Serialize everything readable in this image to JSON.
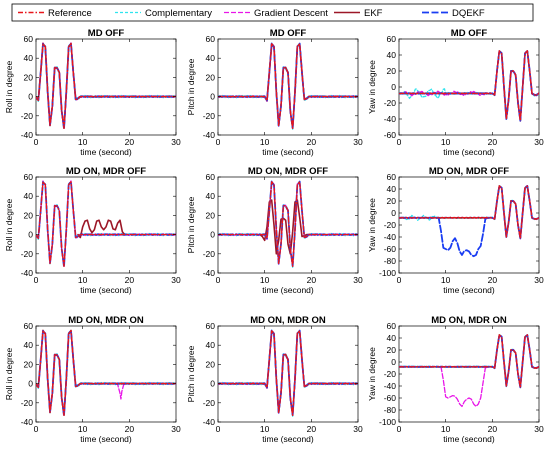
{
  "legend": [
    {
      "name": "Reference",
      "color": "#e8161b",
      "dash": "5,2,1.5,2",
      "width": 1.4
    },
    {
      "name": "Complementary",
      "color": "#2fe4ee",
      "dash": "3,2",
      "width": 1.3
    },
    {
      "name": "Gradient Descent",
      "color": "#e815e8",
      "dash": "5,2",
      "width": 1.3
    },
    {
      "name": "EKF",
      "color": "#9c1727",
      "dash": "",
      "width": 1.6
    },
    {
      "name": "DQEKF",
      "color": "#1a3df2",
      "dash": "7,2.5",
      "width": 1.8
    }
  ],
  "chart_data": [
    {
      "type": "line",
      "title": "MD OFF",
      "xlabel": "time (second)",
      "ylabel": "Roll in degree",
      "xlim": [
        0,
        30
      ],
      "ylim": [
        -40,
        60
      ],
      "xticks": [
        0,
        10,
        20,
        30
      ],
      "yticks": [
        -40,
        -20,
        0,
        20,
        40,
        60
      ],
      "series": [
        {
          "name": "Reference",
          "x": [
            0,
            0.5,
            1,
            1.5,
            2,
            2.5,
            3,
            3.5,
            4,
            4.5,
            5,
            5.5,
            6,
            6.5,
            7,
            7.5,
            8,
            8.5,
            9,
            9.5,
            10,
            30
          ],
          "values": [
            0,
            -4,
            25,
            55,
            52,
            5,
            -30,
            -10,
            30,
            30,
            25,
            -15,
            -33,
            5,
            52,
            55,
            25,
            -3,
            -2,
            0,
            0,
            0
          ]
        }
      ]
    },
    {
      "type": "line",
      "title": "MD OFF",
      "xlabel": "time (second)",
      "ylabel": "Pitch in degree",
      "xlim": [
        0,
        30
      ],
      "ylim": [
        -40,
        60
      ],
      "xticks": [
        0,
        10,
        20,
        30
      ],
      "yticks": [
        -40,
        -20,
        0,
        20,
        40,
        60
      ],
      "series": [
        {
          "name": "Reference",
          "x": [
            0,
            10,
            10.5,
            11,
            11.5,
            12,
            12.5,
            13,
            13.5,
            14,
            14.5,
            15,
            15.5,
            16,
            16.5,
            17,
            17.5,
            18,
            18.5,
            19,
            19.5,
            20,
            30
          ],
          "values": [
            0,
            0,
            -4,
            25,
            55,
            52,
            5,
            -30,
            -10,
            30,
            30,
            25,
            -15,
            -33,
            5,
            52,
            55,
            25,
            -3,
            -2,
            0,
            0,
            0
          ]
        }
      ]
    },
    {
      "type": "line",
      "title": "MD OFF",
      "xlabel": "time (second)",
      "ylabel": "Yaw in degree",
      "xlim": [
        0,
        30
      ],
      "ylim": [
        -60,
        60
      ],
      "xticks": [
        0,
        10,
        20,
        30
      ],
      "yticks": [
        -60,
        -40,
        -20,
        0,
        20,
        40,
        60
      ],
      "series": [
        {
          "name": "Reference",
          "x": [
            0,
            20,
            20.5,
            21,
            21.5,
            22,
            22.5,
            23,
            23.5,
            24,
            24.5,
            25,
            25.5,
            26,
            26.5,
            27,
            27.5,
            28,
            28.5,
            29,
            29.5,
            30
          ],
          "values": [
            -8,
            -8,
            -10,
            20,
            45,
            42,
            0,
            -40,
            -15,
            20,
            20,
            15,
            -20,
            -42,
            0,
            42,
            45,
            20,
            -8,
            -10,
            -10,
            -8
          ]
        }
      ]
    },
    {
      "type": "line",
      "title": "MD ON, MDR OFF",
      "xlabel": "time (second)",
      "ylabel": "Roll in degree",
      "xlim": [
        0,
        30
      ],
      "ylim": [
        -40,
        60
      ],
      "xticks": [
        0,
        10,
        20,
        30
      ],
      "yticks": [
        -40,
        -20,
        0,
        20,
        40,
        60
      ],
      "series": [
        {
          "name": "Reference",
          "x": [
            0,
            0.5,
            1,
            1.5,
            2,
            2.5,
            3,
            3.5,
            4,
            4.5,
            5,
            5.5,
            6,
            6.5,
            7,
            7.5,
            8,
            8.5,
            9,
            9.5,
            10,
            30
          ],
          "values": [
            0,
            -4,
            25,
            55,
            52,
            5,
            -30,
            -10,
            30,
            30,
            25,
            -15,
            -33,
            5,
            52,
            55,
            25,
            -3,
            -2,
            0,
            0,
            0
          ]
        },
        {
          "name": "EKF",
          "x": [
            9,
            9.5,
            10,
            10.5,
            11,
            11.5,
            12,
            12.5,
            13,
            13.5,
            14,
            14.5,
            15,
            15.5,
            16,
            16.5,
            17,
            17.5,
            18,
            18.5,
            19
          ],
          "values": [
            0,
            -3,
            8,
            14,
            15,
            6,
            2,
            5,
            14,
            15,
            8,
            5,
            8,
            15,
            14,
            6,
            5,
            12,
            15,
            3,
            0
          ]
        }
      ]
    },
    {
      "type": "line",
      "title": "MD ON, MDR OFF",
      "xlabel": "time (second)",
      "ylabel": "Pitch in degree",
      "xlim": [
        0,
        30
      ],
      "ylim": [
        -40,
        60
      ],
      "xticks": [
        0,
        10,
        20,
        30
      ],
      "yticks": [
        -40,
        -20,
        0,
        20,
        40,
        60
      ],
      "series": [
        {
          "name": "Reference",
          "x": [
            0,
            10,
            10.5,
            11,
            11.5,
            12,
            12.5,
            13,
            13.5,
            14,
            14.5,
            15,
            15.5,
            16,
            16.5,
            17,
            17.5,
            18,
            18.5,
            19,
            19.5,
            20,
            30
          ],
          "values": [
            0,
            0,
            -4,
            25,
            55,
            52,
            5,
            -30,
            -10,
            30,
            30,
            25,
            -15,
            -33,
            5,
            52,
            55,
            25,
            -3,
            -2,
            0,
            0,
            0
          ]
        },
        {
          "name": "EKF",
          "x": [
            9,
            9.5,
            10,
            10.5,
            11,
            11.5,
            12,
            12.5,
            13,
            13.5,
            14,
            14.5,
            15,
            15.5,
            16,
            16.5,
            17,
            17.5,
            18,
            18.5,
            19,
            19.5,
            20
          ],
          "values": [
            0,
            -2,
            -6,
            8,
            34,
            36,
            10,
            -20,
            -6,
            16,
            17,
            15,
            -10,
            -20,
            3,
            34,
            36,
            18,
            -2,
            -1,
            0,
            0,
            0
          ]
        }
      ]
    },
    {
      "type": "line",
      "title": "MD ON, MDR OFF",
      "xlabel": "time (second)",
      "ylabel": "Yaw in degree",
      "xlim": [
        0,
        30
      ],
      "ylim": [
        -100,
        60
      ],
      "xticks": [
        0,
        10,
        20,
        30
      ],
      "yticks": [
        -100,
        -80,
        -60,
        -40,
        -20,
        0,
        20,
        40,
        60
      ],
      "series": [
        {
          "name": "Reference",
          "x": [
            0,
            20,
            20.5,
            21,
            21.5,
            22,
            22.5,
            23,
            23.5,
            24,
            24.5,
            25,
            25.5,
            26,
            26.5,
            27,
            27.5,
            28,
            28.5,
            29,
            29.5,
            30
          ],
          "values": [
            -8,
            -8,
            -10,
            20,
            45,
            42,
            0,
            -40,
            -15,
            20,
            20,
            15,
            -20,
            -42,
            0,
            42,
            45,
            20,
            -8,
            -10,
            -10,
            -8
          ]
        },
        {
          "name": "DQEKF",
          "x": [
            0,
            8.5,
            9,
            9.5,
            10,
            10.5,
            11,
            11.5,
            12,
            12.5,
            13,
            13.5,
            14,
            14.5,
            15,
            15.5,
            16,
            16.5,
            17,
            17.5,
            18,
            18.5,
            19,
            19.5,
            20,
            20.5,
            21,
            21.5,
            22,
            22.5,
            23,
            23.5,
            24,
            24.5,
            25,
            25.5,
            26,
            26.5,
            27,
            27.5,
            28,
            28.5,
            29,
            29.5,
            30
          ],
          "values": [
            -8,
            -8,
            -30,
            -58,
            -60,
            -62,
            -58,
            -47,
            -42,
            -50,
            -64,
            -70,
            -63,
            -62,
            -64,
            -70,
            -72,
            -70,
            -60,
            -55,
            -35,
            -10,
            -8,
            -8,
            -8,
            -10,
            20,
            45,
            42,
            0,
            -40,
            -15,
            20,
            20,
            15,
            -20,
            -42,
            0,
            42,
            45,
            20,
            -8,
            -10,
            -10,
            -8
          ]
        }
      ]
    },
    {
      "type": "line",
      "title": "MD ON, MDR ON",
      "xlabel": "time (second)",
      "ylabel": "Roll in degree",
      "xlim": [
        0,
        30
      ],
      "ylim": [
        -40,
        60
      ],
      "xticks": [
        0,
        10,
        20,
        30
      ],
      "yticks": [
        -40,
        -20,
        0,
        20,
        40,
        60
      ],
      "series": [
        {
          "name": "Reference",
          "x": [
            0,
            0.5,
            1,
            1.5,
            2,
            2.5,
            3,
            3.5,
            4,
            4.5,
            5,
            5.5,
            6,
            6.5,
            7,
            7.5,
            8,
            8.5,
            9,
            9.5,
            10,
            30
          ],
          "values": [
            0,
            -4,
            25,
            55,
            52,
            5,
            -30,
            -10,
            30,
            30,
            25,
            -15,
            -33,
            5,
            52,
            55,
            25,
            -3,
            -2,
            0,
            0,
            0
          ]
        },
        {
          "name": "Gradient Descent",
          "x": [
            17,
            17.5,
            18,
            18.2,
            18.4,
            18.8,
            19.5
          ],
          "values": [
            0,
            -1,
            -10,
            -16,
            -8,
            -1,
            0
          ]
        }
      ]
    },
    {
      "type": "line",
      "title": "MD ON, MDR ON",
      "xlabel": "time (second)",
      "ylabel": "Pitch in degree",
      "xlim": [
        0,
        30
      ],
      "ylim": [
        -40,
        60
      ],
      "xticks": [
        0,
        10,
        20,
        30
      ],
      "yticks": [
        -40,
        -20,
        0,
        20,
        40,
        60
      ],
      "series": [
        {
          "name": "Reference",
          "x": [
            0,
            10,
            10.5,
            11,
            11.5,
            12,
            12.5,
            13,
            13.5,
            14,
            14.5,
            15,
            15.5,
            16,
            16.5,
            17,
            17.5,
            18,
            18.5,
            19,
            19.5,
            20,
            30
          ],
          "values": [
            0,
            0,
            -4,
            25,
            55,
            52,
            5,
            -30,
            -10,
            30,
            30,
            25,
            -15,
            -33,
            5,
            52,
            55,
            25,
            -3,
            -2,
            0,
            0,
            0
          ]
        }
      ]
    },
    {
      "type": "line",
      "title": "MD ON, MDR ON",
      "xlabel": "time (second)",
      "ylabel": "Yaw in degree",
      "xlim": [
        0,
        30
      ],
      "ylim": [
        -100,
        60
      ],
      "xticks": [
        0,
        10,
        20,
        30
      ],
      "yticks": [
        -100,
        -80,
        -60,
        -40,
        -20,
        0,
        20,
        40,
        60
      ],
      "series": [
        {
          "name": "Reference",
          "x": [
            0,
            20,
            20.5,
            21,
            21.5,
            22,
            22.5,
            23,
            23.5,
            24,
            24.5,
            25,
            25.5,
            26,
            26.5,
            27,
            27.5,
            28,
            28.5,
            29,
            29.5,
            30
          ],
          "values": [
            -8,
            -8,
            -10,
            20,
            45,
            42,
            0,
            -40,
            -15,
            20,
            20,
            15,
            -20,
            -42,
            0,
            42,
            45,
            20,
            -8,
            -10,
            -10,
            -8
          ]
        },
        {
          "name": "Gradient Descent",
          "x": [
            9,
            9.5,
            10,
            10.5,
            11,
            11.5,
            12,
            12.5,
            13,
            13.5,
            14,
            14.5,
            15,
            15.5,
            16,
            16.5,
            17,
            17.5,
            18,
            18.5,
            19
          ],
          "values": [
            -8,
            -30,
            -58,
            -60,
            -58,
            -56,
            -57,
            -62,
            -70,
            -74,
            -66,
            -62,
            -60,
            -62,
            -70,
            -74,
            -70,
            -60,
            -35,
            -10,
            -8
          ]
        }
      ]
    }
  ]
}
